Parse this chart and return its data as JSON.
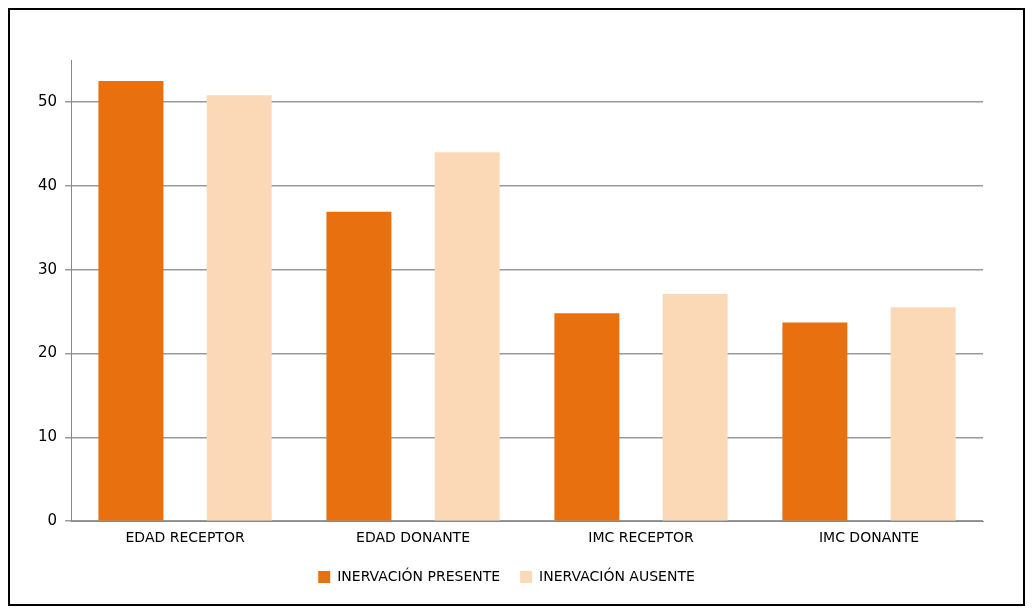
{
  "chart_data": {
    "type": "bar",
    "categories": [
      "EDAD RECEPTOR",
      "EDAD DONANTE",
      "IMC RECEPTOR",
      "IMC DONANTE"
    ],
    "series": [
      {
        "name": "INERVACIÓN PRESENTE",
        "color": "#e8700f",
        "values": [
          52.5,
          36.9,
          24.8,
          23.7
        ]
      },
      {
        "name": "INERVACIÓN AUSENTE",
        "color": "#fbd9b6",
        "values": [
          50.8,
          44.0,
          27.1,
          25.5
        ]
      }
    ],
    "ylim": [
      0,
      55
    ],
    "yticks": [
      0,
      10,
      20,
      30,
      40,
      50
    ],
    "grid": "y",
    "legend": "bottom"
  }
}
